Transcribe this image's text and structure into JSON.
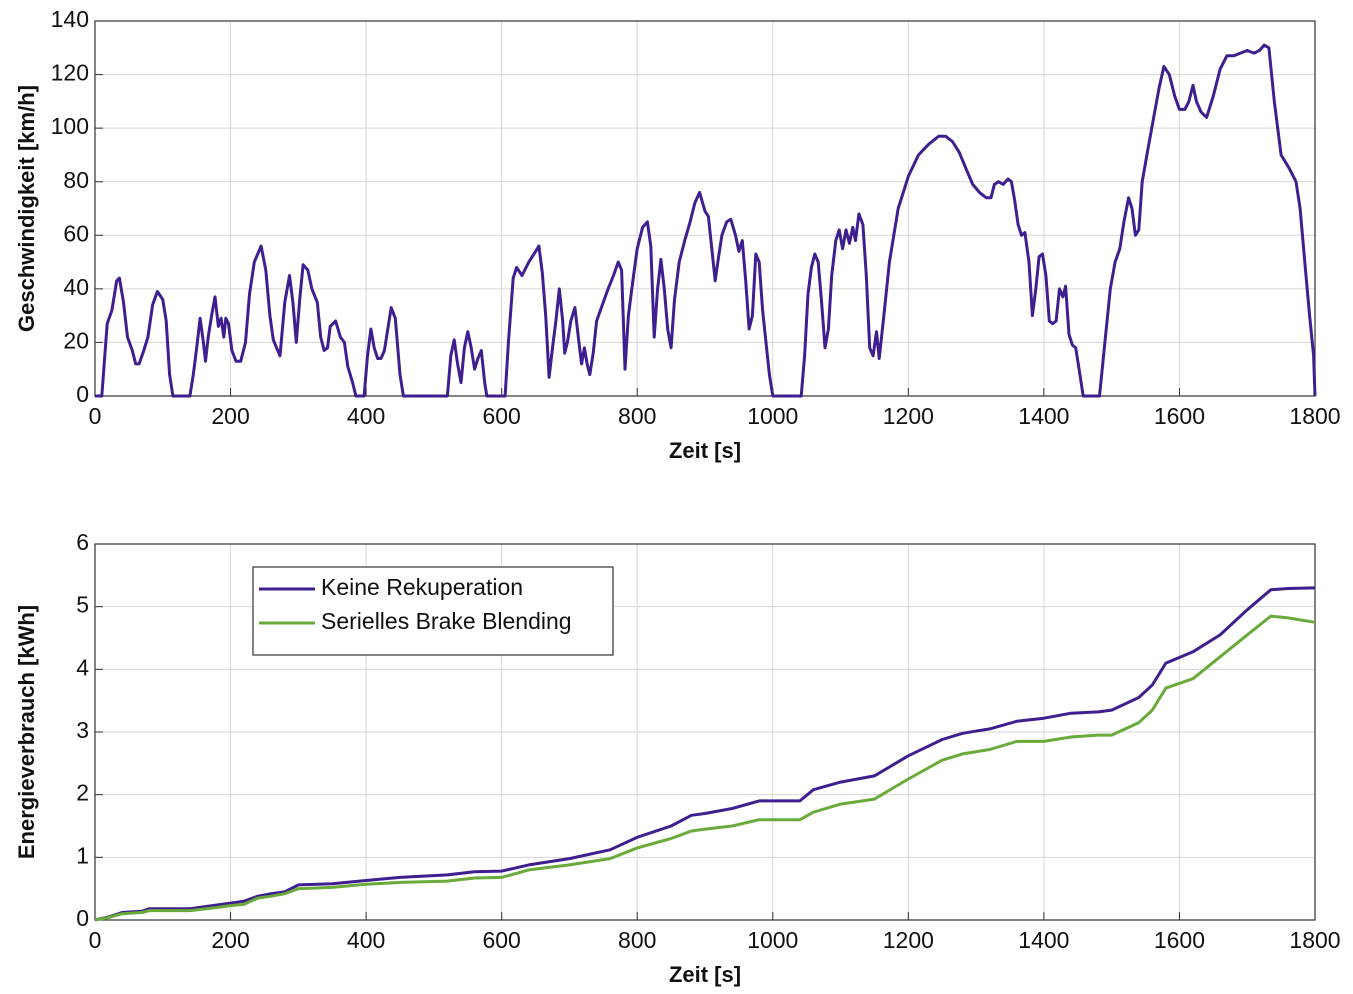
{
  "chart_data": [
    {
      "type": "line",
      "xlabel": "Zeit [s]",
      "ylabel": "Geschwindigkeit [km/h]",
      "color": "#3f1f8f",
      "grid": true,
      "xlim": [
        0,
        1800
      ],
      "xticks": [
        0,
        200,
        400,
        600,
        800,
        1000,
        1200,
        1400,
        1600,
        1800
      ],
      "ylim": [
        0,
        140
      ],
      "yticks": [
        0,
        20,
        40,
        60,
        80,
        100,
        120,
        140
      ],
      "x": [
        0,
        10,
        18,
        25,
        32,
        36,
        42,
        48,
        55,
        60,
        65,
        72,
        78,
        85,
        92,
        100,
        105,
        110,
        115,
        140,
        145,
        150,
        155,
        160,
        163,
        167,
        172,
        177,
        182,
        186,
        190,
        193,
        197,
        202,
        208,
        215,
        222,
        228,
        235,
        245,
        252,
        258,
        263,
        268,
        273,
        280,
        287,
        292,
        297,
        302,
        307,
        314,
        320,
        328,
        333,
        338,
        343,
        347,
        355,
        362,
        368,
        373,
        380,
        385,
        397,
        402,
        407,
        412,
        417,
        422,
        427,
        432,
        437,
        443,
        450,
        455,
        520,
        525,
        530,
        535,
        540,
        545,
        550,
        555,
        560,
        565,
        570,
        575,
        578,
        605,
        610,
        617,
        622,
        630,
        640,
        650,
        655,
        660,
        665,
        670,
        675,
        680,
        685,
        690,
        693,
        697,
        702,
        708,
        713,
        718,
        722,
        726,
        730,
        735,
        740,
        750,
        757,
        765,
        772,
        777,
        782,
        787,
        793,
        800,
        808,
        815,
        820,
        825,
        830,
        835,
        840,
        845,
        850,
        855,
        862,
        870,
        878,
        885,
        892,
        900,
        905,
        910,
        915,
        920,
        925,
        932,
        938,
        945,
        950,
        955,
        960,
        965,
        970,
        975,
        980,
        985,
        990,
        995,
        1000,
        1042,
        1047,
        1052,
        1057,
        1062,
        1067,
        1072,
        1077,
        1082,
        1087,
        1093,
        1098,
        1103,
        1108,
        1113,
        1118,
        1122,
        1127,
        1133,
        1138,
        1143,
        1148,
        1153,
        1157,
        1163,
        1172,
        1185,
        1200,
        1215,
        1230,
        1245,
        1255,
        1265,
        1275,
        1285,
        1295,
        1305,
        1315,
        1322,
        1327,
        1333,
        1340,
        1347,
        1352,
        1357,
        1362,
        1367,
        1372,
        1378,
        1383,
        1388,
        1393,
        1398,
        1403,
        1408,
        1413,
        1418,
        1423,
        1428,
        1432,
        1437,
        1442,
        1447,
        1452,
        1458,
        1482,
        1490,
        1498,
        1505,
        1512,
        1518,
        1525,
        1530,
        1535,
        1540,
        1545,
        1552,
        1562,
        1570,
        1577,
        1585,
        1593,
        1600,
        1608,
        1614,
        1620,
        1625,
        1632,
        1640,
        1650,
        1660,
        1670,
        1680,
        1690,
        1700,
        1710,
        1718,
        1725,
        1732,
        1740,
        1750,
        1762,
        1772,
        1778,
        1785,
        1792,
        1798,
        1800
      ],
      "values": [
        0,
        0,
        27,
        32,
        43,
        44,
        35,
        22,
        17,
        12,
        12,
        17,
        22,
        34,
        39,
        36,
        28,
        8,
        0,
        0,
        8,
        18,
        29,
        20,
        13,
        22,
        30,
        37,
        26,
        29,
        22,
        29,
        27,
        17,
        13,
        13,
        20,
        38,
        50,
        56,
        47,
        30,
        21,
        18,
        15,
        35,
        45,
        35,
        20,
        36,
        49,
        47,
        40,
        35,
        22,
        17,
        18,
        26,
        28,
        22,
        20,
        11,
        5,
        0,
        0,
        15,
        25,
        18,
        14,
        14,
        17,
        25,
        33,
        29,
        8,
        0,
        0,
        15,
        21,
        12,
        5,
        18,
        24,
        18,
        10,
        14,
        17,
        5,
        0,
        0,
        20,
        44,
        48,
        45,
        50,
        54,
        56,
        46,
        30,
        7,
        18,
        28,
        40,
        28,
        16,
        20,
        28,
        33,
        22,
        12,
        18,
        12,
        8,
        16,
        28,
        35,
        40,
        45,
        50,
        47,
        10,
        30,
        42,
        55,
        63,
        65,
        56,
        22,
        40,
        51,
        40,
        25,
        18,
        36,
        50,
        58,
        65,
        72,
        76,
        69,
        67,
        55,
        43,
        52,
        60,
        65,
        66,
        60,
        54,
        58,
        43,
        25,
        30,
        53,
        50,
        32,
        20,
        8,
        0,
        0,
        15,
        38,
        48,
        53,
        50,
        35,
        18,
        25,
        45,
        58,
        62,
        55,
        62,
        57,
        63,
        58,
        68,
        64,
        45,
        18,
        15,
        24,
        14,
        28,
        50,
        70,
        82,
        90,
        94,
        97,
        97,
        95,
        91,
        85,
        79,
        76,
        74,
        74,
        79,
        80,
        79,
        81,
        80,
        73,
        64,
        60,
        61,
        50,
        30,
        40,
        52,
        53,
        45,
        28,
        27,
        28,
        40,
        37,
        41,
        23,
        19,
        18,
        10,
        0,
        0,
        20,
        40,
        50,
        55,
        65,
        74,
        70,
        60,
        62,
        80,
        90,
        104,
        115,
        123,
        120,
        112,
        107,
        107,
        110,
        116,
        110,
        106,
        104,
        112,
        122,
        127,
        127,
        128,
        129,
        128,
        129,
        131,
        130,
        110,
        90,
        85,
        80,
        70,
        50,
        30,
        15,
        0
      ]
    },
    {
      "type": "line",
      "xlabel": "Zeit [s]",
      "ylabel": "Energieverbrauch [kWh]",
      "grid": true,
      "legend": "upper left",
      "xlim": [
        0,
        1800
      ],
      "xticks": [
        0,
        200,
        400,
        600,
        800,
        1000,
        1200,
        1400,
        1600,
        1800
      ],
      "ylim": [
        0,
        6
      ],
      "yticks": [
        0,
        1,
        2,
        3,
        4,
        5,
        6
      ],
      "x": [
        0,
        20,
        40,
        70,
        80,
        140,
        180,
        200,
        220,
        240,
        260,
        280,
        300,
        350,
        400,
        450,
        520,
        560,
        600,
        640,
        700,
        760,
        800,
        850,
        880,
        900,
        940,
        980,
        1040,
        1060,
        1100,
        1150,
        1200,
        1250,
        1280,
        1320,
        1360,
        1400,
        1440,
        1480,
        1500,
        1540,
        1560,
        1580,
        1620,
        1660,
        1700,
        1735,
        1760,
        1800
      ],
      "series": [
        {
          "name": "Keine Rekuperation",
          "color": "#3f1f8f",
          "values": [
            0,
            0.05,
            0.12,
            0.14,
            0.18,
            0.18,
            0.24,
            0.27,
            0.3,
            0.38,
            0.42,
            0.45,
            0.56,
            0.58,
            0.63,
            0.68,
            0.72,
            0.77,
            0.78,
            0.88,
            0.98,
            1.12,
            1.32,
            1.5,
            1.67,
            1.7,
            1.78,
            1.9,
            1.9,
            2.08,
            2.2,
            2.3,
            2.62,
            2.88,
            2.98,
            3.05,
            3.17,
            3.22,
            3.3,
            3.32,
            3.35,
            3.55,
            3.75,
            4.1,
            4.28,
            4.55,
            4.95,
            5.27,
            5.29,
            5.3
          ]
        },
        {
          "name": "Serielles Brake Blending",
          "color": "#6aaa3a",
          "values": [
            0,
            0.04,
            0.1,
            0.12,
            0.15,
            0.15,
            0.2,
            0.23,
            0.25,
            0.35,
            0.38,
            0.42,
            0.5,
            0.52,
            0.57,
            0.6,
            0.62,
            0.67,
            0.68,
            0.8,
            0.88,
            0.98,
            1.15,
            1.3,
            1.42,
            1.45,
            1.5,
            1.6,
            1.6,
            1.72,
            1.85,
            1.93,
            2.25,
            2.55,
            2.65,
            2.72,
            2.85,
            2.85,
            2.92,
            2.95,
            2.95,
            3.15,
            3.35,
            3.7,
            3.85,
            4.2,
            4.55,
            4.85,
            4.82,
            4.75
          ]
        }
      ]
    }
  ]
}
